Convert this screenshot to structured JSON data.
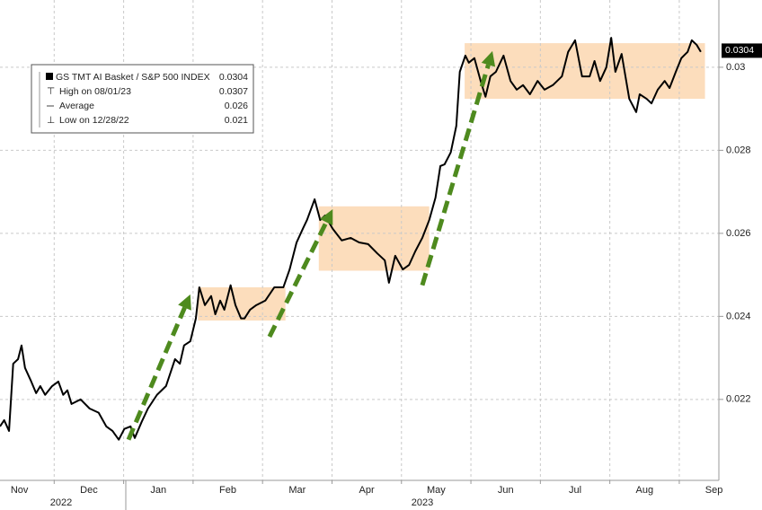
{
  "chart_data": {
    "type": "line",
    "xlim": [
      0.22,
      10.57
    ],
    "ylim": [
      0.02005,
      0.03162
    ],
    "xticks": [
      {
        "value": 0,
        "label": "Nov"
      },
      {
        "value": 1,
        "label": "Dec"
      },
      {
        "value": 2,
        "label": "Jan"
      },
      {
        "value": 3,
        "label": "Feb"
      },
      {
        "value": 4,
        "label": "Mar"
      },
      {
        "value": 5,
        "label": "Apr"
      },
      {
        "value": 6,
        "label": "May"
      },
      {
        "value": 7,
        "label": "Jun"
      },
      {
        "value": 8,
        "label": "Jul"
      },
      {
        "value": 9,
        "label": "Aug"
      },
      {
        "value": 10,
        "label": "Sep"
      }
    ],
    "years": [
      "2022",
      "2023"
    ],
    "yticks": [
      0.022,
      0.024,
      0.026,
      0.028,
      0.03
    ],
    "grid": true,
    "x": [
      0.22,
      0.28,
      0.35,
      0.41,
      0.48,
      0.53,
      0.58,
      0.67,
      0.74,
      0.8,
      0.87,
      0.97,
      1.06,
      1.13,
      1.19,
      1.25,
      1.38,
      1.51,
      1.64,
      1.75,
      1.84,
      1.93,
      2.01,
      2.1,
      2.16,
      2.26,
      2.35,
      2.48,
      2.61,
      2.74,
      2.81,
      2.87,
      2.96,
      3.04,
      3.09,
      3.17,
      3.26,
      3.32,
      3.39,
      3.45,
      3.54,
      3.61,
      3.69,
      3.74,
      3.82,
      3.91,
      4.04,
      4.17,
      4.3,
      4.39,
      4.49,
      4.58,
      4.64,
      4.75,
      4.83,
      4.9,
      5.01,
      5.14,
      5.27,
      5.39,
      5.52,
      5.65,
      5.76,
      5.82,
      5.91,
      6.02,
      6.11,
      6.2,
      6.3,
      6.4,
      6.49,
      6.56,
      6.62,
      6.71,
      6.79,
      6.84,
      6.92,
      6.97,
      7.05,
      7.14,
      7.21,
      7.28,
      7.36,
      7.47,
      7.57,
      7.66,
      7.75,
      7.85,
      7.96,
      8.06,
      8.18,
      8.31,
      8.4,
      8.5,
      8.6,
      8.71,
      8.78,
      8.86,
      8.95,
      9.02,
      9.08,
      9.17,
      9.28,
      9.38,
      9.43,
      9.53,
      9.6,
      9.69,
      9.79,
      9.86,
      9.95,
      10.03,
      10.12,
      10.18,
      10.25,
      10.31
    ],
    "series": [
      {
        "name": "GS TMT AI Basket / S&P 500 INDEX",
        "color": "#000000",
        "last_value": 0.0304,
        "values": [
          0.02135,
          0.0215,
          0.02124,
          0.02286,
          0.02297,
          0.0233,
          0.02276,
          0.02243,
          0.02215,
          0.02232,
          0.02211,
          0.02232,
          0.02243,
          0.02211,
          0.02222,
          0.02189,
          0.022,
          0.02178,
          0.02168,
          0.02135,
          0.02124,
          0.02103,
          0.02129,
          0.02135,
          0.02107,
          0.02146,
          0.02178,
          0.02211,
          0.02232,
          0.02297,
          0.02286,
          0.0233,
          0.0234,
          0.02395,
          0.0247,
          0.02427,
          0.02449,
          0.02405,
          0.02438,
          0.02416,
          0.02475,
          0.02427,
          0.02395,
          0.02395,
          0.02416,
          0.02427,
          0.02438,
          0.0247,
          0.0247,
          0.02513,
          0.02578,
          0.02611,
          0.02632,
          0.02682,
          0.02632,
          0.02643,
          0.02611,
          0.02583,
          0.02589,
          0.02578,
          0.02574,
          0.02552,
          0.02535,
          0.02481,
          0.02546,
          0.02513,
          0.02524,
          0.02557,
          0.02589,
          0.02632,
          0.02686,
          0.02762,
          0.02766,
          0.02795,
          0.02859,
          0.02989,
          0.03028,
          0.03011,
          0.03022,
          0.02967,
          0.02929,
          0.02978,
          0.02989,
          0.03028,
          0.02967,
          0.02946,
          0.02957,
          0.02935,
          0.02967,
          0.02946,
          0.02957,
          0.02978,
          0.03037,
          0.03065,
          0.02978,
          0.02978,
          0.03015,
          0.02967,
          0.03,
          0.03071,
          0.02989,
          0.03032,
          0.02924,
          0.02892,
          0.02935,
          0.02924,
          0.02913,
          0.02946,
          0.02967,
          0.0295,
          0.02989,
          0.03022,
          0.03037,
          0.03065,
          0.03054,
          0.03037
        ]
      }
    ],
    "stats": [
      {
        "label": "High on 08/01/23",
        "value": 0.0307
      },
      {
        "label": "Average",
        "value": 0.026
      },
      {
        "label": "Low on 12/28/22",
        "value": 0.021
      }
    ],
    "highlight_color": "#fbd7b0",
    "highlight_boxes": [
      {
        "x": [
          3.07,
          4.33
        ],
        "y": [
          0.0239,
          0.0247
        ]
      },
      {
        "x": [
          4.81,
          6.4
        ],
        "y": [
          0.0251,
          0.02665
        ]
      },
      {
        "x": [
          6.91,
          10.37
        ],
        "y": [
          0.02924,
          0.03058
        ]
      }
    ],
    "arrow_color": "#4e8a1e",
    "arrows": [
      {
        "from": [
          2.07,
          0.02103
        ],
        "to": [
          2.96,
          0.02453
        ]
      },
      {
        "from": [
          4.1,
          0.02351
        ],
        "to": [
          5.01,
          0.02658
        ]
      },
      {
        "from": [
          6.3,
          0.02475
        ],
        "to": [
          7.31,
          0.03039
        ]
      }
    ]
  }
}
